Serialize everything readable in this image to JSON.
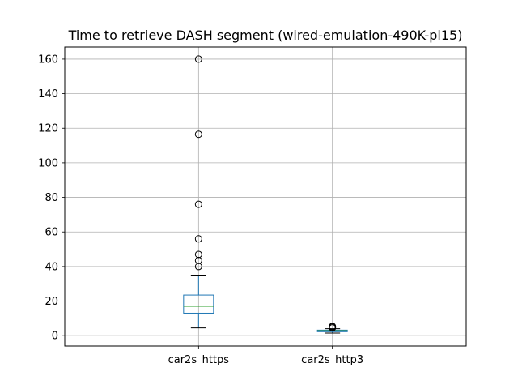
{
  "chart_data": {
    "type": "box",
    "title": "Time to retrieve DASH segment (wired-emulation-490K-pl15)",
    "xlabel": "",
    "ylabel": "",
    "ylim": [
      -6,
      167
    ],
    "yticks": [
      0,
      20,
      40,
      60,
      80,
      100,
      120,
      140,
      160
    ],
    "grid": true,
    "categories": [
      "car2s_https",
      "car2s_http3"
    ],
    "boxes": [
      {
        "label": "car2s_https",
        "whisker_low": 4.5,
        "q1": 13,
        "median": 17,
        "q3": 23.5,
        "whisker_high": 35,
        "outliers": [
          40,
          43.5,
          47,
          56,
          76,
          116.5,
          160
        ]
      },
      {
        "label": "car2s_http3",
        "whisker_low": 1.5,
        "q1": 2.3,
        "median": 2.8,
        "q3": 3.2,
        "whisker_high": 4.0,
        "outliers": [
          4.5,
          5.0,
          5.4
        ]
      }
    ],
    "colors": {
      "box": "#1f77b4",
      "median": "#2ca02c",
      "whisker": "#1f77b4",
      "outlier": "#000000",
      "grid": "#b0b0b0"
    }
  }
}
